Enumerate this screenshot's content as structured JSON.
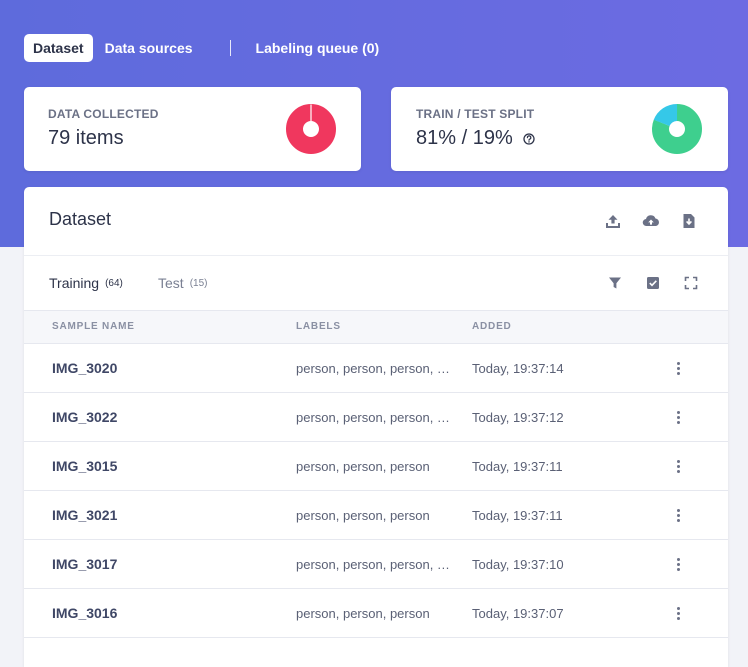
{
  "nav": {
    "items": [
      {
        "label": "Dataset",
        "active": true
      },
      {
        "label": "Data sources",
        "active": false
      },
      {
        "label": "Labeling queue (0)",
        "active": false
      }
    ]
  },
  "stats": {
    "collected": {
      "label": "DATA COLLECTED",
      "value": "79 items",
      "color": "#f0375e",
      "fraction": 1.0
    },
    "split": {
      "label": "TRAIN / TEST SPLIT",
      "value": "81% / 19%",
      "train_pct": 81,
      "test_pct": 19,
      "train_color": "#3ecf8e",
      "test_color": "#35c8e8"
    }
  },
  "panel": {
    "title": "Dataset",
    "header_icons": [
      "upload-icon",
      "cloud-upload-icon",
      "download-file-icon"
    ],
    "tabs": [
      {
        "label": "Training",
        "count": "(64)",
        "active": true
      },
      {
        "label": "Test",
        "count": "(15)",
        "active": false
      }
    ],
    "tab_icons": [
      "filter-icon",
      "checkbox-icon",
      "fullscreen-icon"
    ]
  },
  "table": {
    "columns": [
      "SAMPLE NAME",
      "LABELS",
      "ADDED"
    ],
    "rows": [
      {
        "name": "IMG_3020",
        "labels": "person, person, person, person",
        "added": "Today, 19:37:14"
      },
      {
        "name": "IMG_3022",
        "labels": "person, person, person, person",
        "added": "Today, 19:37:12"
      },
      {
        "name": "IMG_3015",
        "labels": "person, person, person",
        "added": "Today, 19:37:11"
      },
      {
        "name": "IMG_3021",
        "labels": "person, person, person",
        "added": "Today, 19:37:11"
      },
      {
        "name": "IMG_3017",
        "labels": "person, person, person, person",
        "added": "Today, 19:37:10"
      },
      {
        "name": "IMG_3016",
        "labels": "person, person, person",
        "added": "Today, 19:37:07"
      }
    ]
  },
  "colors": {
    "accent": "#6169e0",
    "icon": "#6b7186"
  }
}
